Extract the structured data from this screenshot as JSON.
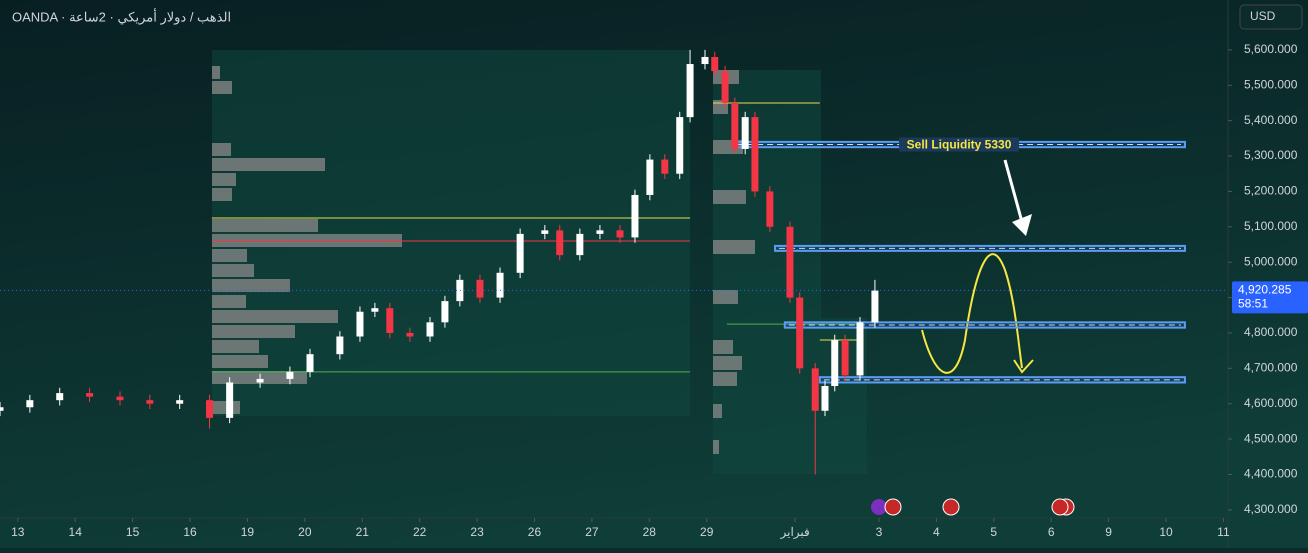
{
  "chart_data": {
    "type": "candlestick",
    "title": "OANDA · الذهب / دولار أمريكي · 2ساعة",
    "currency": "USD",
    "ylim": [
      4277,
      5741
    ],
    "yticks": [
      {
        "value": 4300,
        "label": "4,300.000"
      },
      {
        "value": 4400,
        "label": "4,400.000"
      },
      {
        "value": 4500,
        "label": "4,500.000"
      },
      {
        "value": 4600,
        "label": "4,600.000"
      },
      {
        "value": 4700,
        "label": "4,700.000"
      },
      {
        "value": 4800,
        "label": "4,800.000"
      },
      {
        "value": 4900,
        "label": "4,900.000"
      },
      {
        "value": 5000,
        "label": "5,000.000"
      },
      {
        "value": 5100,
        "label": "5,100.000"
      },
      {
        "value": 5200,
        "label": "5,200.000"
      },
      {
        "value": 5300,
        "label": "5,300.000"
      },
      {
        "value": 5400,
        "label": "5,400.000"
      },
      {
        "value": 5500,
        "label": "5,500.000"
      },
      {
        "value": 5600,
        "label": "5,600.000"
      }
    ],
    "xlim": [
      -0.31,
      21.08
    ],
    "xticks": [
      {
        "value": 0,
        "label": "13"
      },
      {
        "value": 1,
        "label": "14"
      },
      {
        "value": 2,
        "label": "15"
      },
      {
        "value": 3,
        "label": "16"
      },
      {
        "value": 4,
        "label": "19"
      },
      {
        "value": 5,
        "label": "20"
      },
      {
        "value": 6,
        "label": "21"
      },
      {
        "value": 7,
        "label": "22"
      },
      {
        "value": 8,
        "label": "23"
      },
      {
        "value": 9,
        "label": "26"
      },
      {
        "value": 10,
        "label": "27"
      },
      {
        "value": 11,
        "label": "28"
      },
      {
        "value": 12,
        "label": "29"
      },
      {
        "value": 13.54,
        "label": "فبراير"
      },
      {
        "value": 15,
        "label": "3"
      },
      {
        "value": 16,
        "label": "4"
      },
      {
        "value": 17,
        "label": "5"
      },
      {
        "value": 18,
        "label": "6"
      },
      {
        "value": 19,
        "label": "9"
      },
      {
        "value": 20,
        "label": "10"
      },
      {
        "value": 21,
        "label": "11"
      }
    ],
    "up_color": "#ffffff",
    "down_color": "#f23645",
    "x": [
      -0.31,
      0.21,
      0.73,
      1.25,
      1.78,
      2.3,
      2.82,
      3.34,
      3.69,
      4.22,
      4.74,
      5.09,
      5.61,
      5.96,
      6.22,
      6.48,
      6.83,
      7.18,
      7.44,
      7.7,
      8.05,
      8.4,
      8.75,
      9.18,
      9.44,
      9.79,
      10.14,
      10.49,
      10.75,
      11.01,
      11.27,
      11.53,
      11.71,
      11.97,
      12.14,
      12.32,
      12.49,
      12.67,
      12.84,
      13.1,
      13.45,
      13.62,
      13.89,
      14.06,
      14.23,
      14.41,
      14.67,
      14.93
    ],
    "open": [
      4580,
      4590,
      4610,
      4630,
      4620,
      4610,
      4600,
      4610,
      4560,
      4660,
      4670,
      4690,
      4740,
      4790,
      4860,
      4870,
      4800,
      4790,
      4830,
      4890,
      4950,
      4900,
      4970,
      5080,
      5090,
      5020,
      5080,
      5090,
      5070,
      5190,
      5290,
      5250,
      5410,
      5560,
      5580,
      5540,
      5450,
      5320,
      5410,
      5200,
      5100,
      4900,
      4700,
      4580,
      4650,
      4780,
      4680,
      4830
    ],
    "high": [
      4605,
      4625,
      4645,
      4645,
      4635,
      4625,
      4625,
      4625,
      4675,
      4685,
      4705,
      4755,
      4805,
      4875,
      4885,
      4885,
      4815,
      4845,
      4905,
      4965,
      4965,
      4985,
      5095,
      5105,
      5105,
      5095,
      5105,
      5105,
      5205,
      5305,
      5305,
      5425,
      5600,
      5600,
      5595,
      5555,
      5465,
      5425,
      5425,
      5215,
      5115,
      4915,
      4715,
      4665,
      4795,
      4795,
      4845,
      4950
    ],
    "low": [
      4565,
      4575,
      4595,
      4605,
      4595,
      4585,
      4585,
      4530,
      4545,
      4645,
      4655,
      4675,
      4725,
      4775,
      4845,
      4785,
      4775,
      4775,
      4815,
      4875,
      4885,
      4885,
      4955,
      5065,
      5005,
      5005,
      5065,
      5055,
      5055,
      5175,
      5235,
      5235,
      5395,
      5545,
      5525,
      5435,
      5305,
      5305,
      5185,
      5085,
      4885,
      4685,
      4400,
      4565,
      4635,
      4665,
      4665,
      4815
    ],
    "close": [
      4590,
      4610,
      4630,
      4620,
      4610,
      4600,
      4610,
      4560,
      4660,
      4670,
      4690,
      4740,
      4790,
      4860,
      4870,
      4800,
      4790,
      4830,
      4890,
      4950,
      4900,
      4970,
      5080,
      5090,
      5020,
      5080,
      5090,
      5070,
      5190,
      5290,
      5250,
      5410,
      5560,
      5580,
      5540,
      5450,
      5320,
      5410,
      5200,
      5100,
      4900,
      4700,
      4580,
      4650,
      4780,
      4680,
      4830,
      4920
    ],
    "current_price": {
      "value": 4920.285,
      "label": "4,920.285"
    },
    "countdown": "58:51",
    "zones": [
      {
        "low": 5325,
        "high": 5340,
        "x0": 12.46,
        "x1": 20.33,
        "label": "Sell Liquidity 5330"
      },
      {
        "low": 5032,
        "high": 5046,
        "x0": 13.19,
        "x1": 20.33
      },
      {
        "low": 4815,
        "high": 4830,
        "x0": 13.36,
        "x1": 20.33
      },
      {
        "low": 4660,
        "high": 4675,
        "x0": 13.97,
        "x1": 20.33
      }
    ],
    "lines": [
      {
        "value": 5450,
        "x0": 12.11,
        "x1": 13.97,
        "color": "#e8e04a"
      },
      {
        "value": 5125,
        "x0": 3.38,
        "x1": 11.71,
        "color": "#e8e04a"
      },
      {
        "value": 5060,
        "x0": 3.38,
        "x1": 11.71,
        "color": "#f23645"
      },
      {
        "value": 4690,
        "x0": 3.38,
        "x1": 11.71,
        "color": "#4caf50"
      },
      {
        "value": 4825,
        "x0": 12.35,
        "x1": 14.67,
        "color": "#4caf50"
      },
      {
        "value": 4780,
        "x0": 13.97,
        "x1": 14.67,
        "color": "#e8e04a"
      }
    ],
    "grid": false
  }
}
